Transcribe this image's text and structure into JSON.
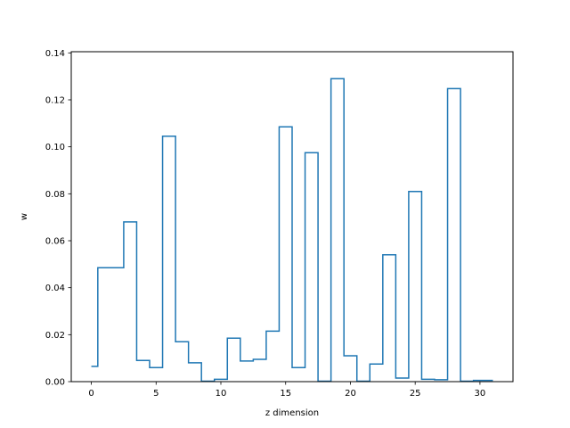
{
  "chart_data": {
    "type": "line",
    "step": "mid",
    "title": "",
    "xlabel": "z dimension",
    "ylabel": "w",
    "xlim": [
      -1.55,
      32.55
    ],
    "ylim": [
      0,
      0.1405
    ],
    "xticks": [
      0,
      5,
      10,
      15,
      20,
      25,
      30
    ],
    "yticks": [
      0.0,
      0.02,
      0.04,
      0.06,
      0.08,
      0.1,
      0.12,
      0.14
    ],
    "ytick_labels": [
      "0.00",
      "0.02",
      "0.04",
      "0.06",
      "0.08",
      "0.10",
      "0.12",
      "0.14"
    ],
    "grid": false,
    "legend": "none",
    "line_color": "#1f77b4",
    "series": [
      {
        "x": [
          0,
          1,
          2,
          3,
          4,
          5,
          6,
          7,
          8,
          9,
          10,
          11,
          12,
          13,
          14,
          15,
          16,
          17,
          18,
          19,
          20,
          21,
          22,
          23,
          24,
          25,
          26,
          27,
          28,
          29,
          30,
          31
        ],
        "values": [
          0.0065,
          0.0485,
          0.0485,
          0.068,
          0.009,
          0.006,
          0.1045,
          0.017,
          0.008,
          0.0002,
          0.001,
          0.0185,
          0.0088,
          0.0095,
          0.0215,
          0.1085,
          0.006,
          0.0975,
          0.0002,
          0.129,
          0.011,
          0.0002,
          0.0075,
          0.054,
          0.0015,
          0.081,
          0.001,
          0.0008,
          0.1248,
          0.0002,
          0.0005,
          0.0005
        ]
      }
    ]
  }
}
